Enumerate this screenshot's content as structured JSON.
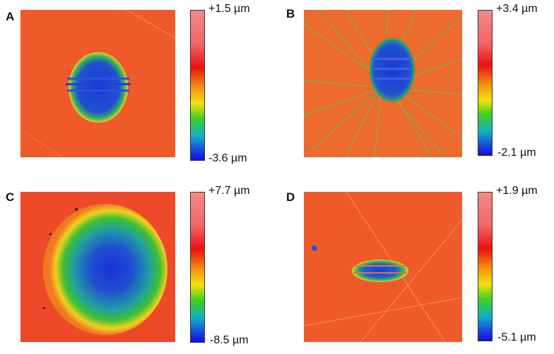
{
  "panels": [
    {
      "label": "A",
      "max": "+1.5 µm",
      "min": "-3.6 µm"
    },
    {
      "label": "B",
      "max": "+3.4 µm",
      "min": "-2.1 µm"
    },
    {
      "label": "C",
      "max": "+7.7 µm",
      "min": "-8.5 µm"
    },
    {
      "label": "D",
      "max": "+1.9 µm",
      "min": "-5.1 µm"
    }
  ],
  "colors": {
    "background": "#ee5a2a",
    "crater_low": "#1030d0",
    "crater_mid": "#30c060",
    "rim": "#f0d020",
    "colorbar_top": "#f48a8a",
    "colorbar_bottom": "#1010d8"
  }
}
